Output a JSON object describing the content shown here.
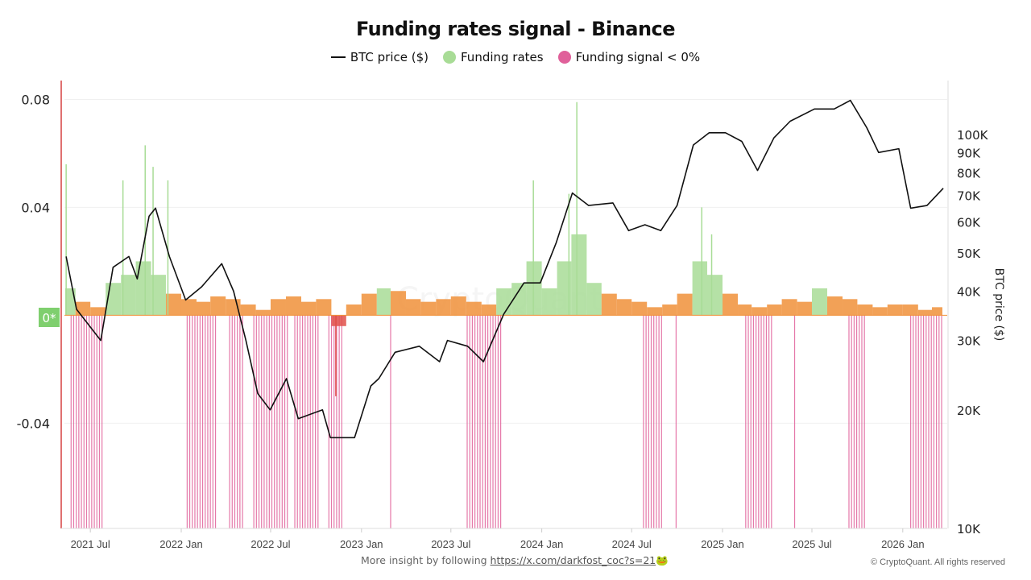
{
  "chart_data": {
    "type": "bar+line",
    "title": "Funding rates signal - Binance",
    "legend": {
      "placement": "top",
      "entries": [
        {
          "label": "BTC price ($)",
          "color": "#111111",
          "kind": "line"
        },
        {
          "label": "Funding rates",
          "color": "#a8dc96",
          "kind": "dot"
        },
        {
          "label": "Funding signal < 0%",
          "color": "#e0609a",
          "kind": "dot"
        }
      ]
    },
    "xlim": [
      "2021-05-03",
      "2026-04-01"
    ],
    "x_ticks": [
      {
        "date": "2021-07-01",
        "label": "2021 Jul"
      },
      {
        "date": "2022-01-01",
        "label": "2022 Jan"
      },
      {
        "date": "2022-07-01",
        "label": "2022 Jul"
      },
      {
        "date": "2023-01-01",
        "label": "2023 Jan"
      },
      {
        "date": "2023-07-01",
        "label": "2023 Jul"
      },
      {
        "date": "2024-01-01",
        "label": "2024 Jan"
      },
      {
        "date": "2024-07-01",
        "label": "2024 Jul"
      },
      {
        "date": "2025-01-01",
        "label": "2025 Jan"
      },
      {
        "date": "2025-07-01",
        "label": "2025 Jul"
      },
      {
        "date": "2026-01-01",
        "label": "2026 Jan"
      }
    ],
    "left_axis": {
      "ylim": [
        -0.079,
        0.087
      ],
      "ticks": [
        {
          "v": 0.08,
          "label": "0.08"
        },
        {
          "v": 0.04,
          "label": "0.04"
        },
        {
          "v": -0.04,
          "label": "-0.04"
        }
      ],
      "zero_label": "0*",
      "grid": true
    },
    "right_axis": {
      "label": "BTC price ($)",
      "scale": "log",
      "ylim": [
        10000,
        137000
      ],
      "ticks": [
        {
          "v": 100000,
          "label": "100K"
        },
        {
          "v": 90000,
          "label": "90K"
        },
        {
          "v": 80000,
          "label": "80K"
        },
        {
          "v": 70000,
          "label": "70K"
        },
        {
          "v": 60000,
          "label": "60K"
        },
        {
          "v": 50000,
          "label": "50K"
        },
        {
          "v": 40000,
          "label": "40K"
        },
        {
          "v": 30000,
          "label": "30K"
        },
        {
          "v": 20000,
          "label": "20K"
        },
        {
          "v": 10000,
          "label": "10K"
        }
      ]
    },
    "colors": {
      "funding_high": "#a8dc96",
      "funding_low": "#f0913a",
      "funding_negative": "#e0504a",
      "signal": "#e0609a",
      "price": "#111111",
      "zero_badge": "#7fcf6e"
    },
    "funding_threshold": 0.01,
    "funding_monthly": [
      [
        "2021-05",
        0.01
      ],
      [
        "2021-06",
        0.005
      ],
      [
        "2021-07",
        0.003
      ],
      [
        "2021-08",
        0.012
      ],
      [
        "2021-09",
        0.015
      ],
      [
        "2021-10",
        0.02
      ],
      [
        "2021-11",
        0.015
      ],
      [
        "2021-12",
        0.008
      ],
      [
        "2022-01",
        0.006
      ],
      [
        "2022-02",
        0.005
      ],
      [
        "2022-03",
        0.007
      ],
      [
        "2022-04",
        0.006
      ],
      [
        "2022-05",
        0.004
      ],
      [
        "2022-06",
        0.002
      ],
      [
        "2022-07",
        0.006
      ],
      [
        "2022-08",
        0.007
      ],
      [
        "2022-09",
        0.005
      ],
      [
        "2022-10",
        0.006
      ],
      [
        "2022-11",
        -0.004
      ],
      [
        "2022-12",
        0.004
      ],
      [
        "2023-01",
        0.008
      ],
      [
        "2023-02",
        0.01
      ],
      [
        "2023-03",
        0.009
      ],
      [
        "2023-04",
        0.006
      ],
      [
        "2023-05",
        0.005
      ],
      [
        "2023-06",
        0.006
      ],
      [
        "2023-07",
        0.007
      ],
      [
        "2023-08",
        0.005
      ],
      [
        "2023-09",
        0.004
      ],
      [
        "2023-10",
        0.01
      ],
      [
        "2023-11",
        0.012
      ],
      [
        "2023-12",
        0.02
      ],
      [
        "2024-01",
        0.01
      ],
      [
        "2024-02",
        0.02
      ],
      [
        "2024-03",
        0.03
      ],
      [
        "2024-04",
        0.012
      ],
      [
        "2024-05",
        0.008
      ],
      [
        "2024-06",
        0.006
      ],
      [
        "2024-07",
        0.005
      ],
      [
        "2024-08",
        0.003
      ],
      [
        "2024-09",
        0.004
      ],
      [
        "2024-10",
        0.008
      ],
      [
        "2024-11",
        0.02
      ],
      [
        "2024-12",
        0.015
      ],
      [
        "2025-01",
        0.008
      ],
      [
        "2025-02",
        0.004
      ],
      [
        "2025-03",
        0.003
      ],
      [
        "2025-04",
        0.004
      ],
      [
        "2025-05",
        0.006
      ],
      [
        "2025-06",
        0.005
      ],
      [
        "2025-07",
        0.01
      ],
      [
        "2025-08",
        0.007
      ],
      [
        "2025-09",
        0.006
      ],
      [
        "2025-10",
        0.004
      ],
      [
        "2025-11",
        0.003
      ],
      [
        "2025-12",
        0.004
      ],
      [
        "2026-01",
        0.004
      ],
      [
        "2026-02",
        0.002
      ],
      [
        "2026-03",
        0.003
      ]
    ],
    "funding_peaks": [
      [
        "2021-05-13",
        0.056
      ],
      [
        "2021-09-05",
        0.05
      ],
      [
        "2021-10-20",
        0.063
      ],
      [
        "2021-11-05",
        0.055
      ],
      [
        "2021-12-05",
        0.05
      ],
      [
        "2022-11-10",
        -0.03
      ],
      [
        "2023-12-15",
        0.05
      ],
      [
        "2024-02-25",
        0.045
      ],
      [
        "2024-03-12",
        0.079
      ],
      [
        "2024-11-20",
        0.04
      ],
      [
        "2024-12-10",
        0.03
      ]
    ],
    "signal_periods": [
      [
        "2021-05-23",
        "2021-07-27"
      ],
      [
        "2022-01-13",
        "2022-03-13"
      ],
      [
        "2022-04-09",
        "2022-05-10"
      ],
      [
        "2022-05-28",
        "2022-08-05"
      ],
      [
        "2022-08-19",
        "2022-10-07"
      ],
      [
        "2022-10-27",
        "2022-11-22"
      ],
      [
        "2023-03-01",
        "2023-03-04"
      ],
      [
        "2023-08-03",
        "2023-10-10"
      ],
      [
        "2024-07-25",
        "2024-08-31"
      ],
      [
        "2024-09-29",
        "2024-10-01"
      ],
      [
        "2025-02-17",
        "2025-04-15"
      ],
      [
        "2025-05-27",
        "2025-05-29"
      ],
      [
        "2025-09-14",
        "2025-10-20"
      ],
      [
        "2026-01-17",
        "2026-03-24"
      ]
    ],
    "btc_price": [
      [
        "2021-05-13",
        49000
      ],
      [
        "2021-06-03",
        36000
      ],
      [
        "2021-07-22",
        30000
      ],
      [
        "2021-08-16",
        46000
      ],
      [
        "2021-09-17",
        49000
      ],
      [
        "2021-10-04",
        43000
      ],
      [
        "2021-10-28",
        62000
      ],
      [
        "2021-11-10",
        65000
      ],
      [
        "2021-12-08",
        49000
      ],
      [
        "2022-01-10",
        38000
      ],
      [
        "2022-02-11",
        41000
      ],
      [
        "2022-03-24",
        47000
      ],
      [
        "2022-04-17",
        40000
      ],
      [
        "2022-05-12",
        30000
      ],
      [
        "2022-06-05",
        22000
      ],
      [
        "2022-06-30",
        20000
      ],
      [
        "2022-08-02",
        24000
      ],
      [
        "2022-08-26",
        19000
      ],
      [
        "2022-10-14",
        20000
      ],
      [
        "2022-10-30",
        17000
      ],
      [
        "2022-12-18",
        17000
      ],
      [
        "2023-01-20",
        23000
      ],
      [
        "2023-02-05",
        24000
      ],
      [
        "2023-03-10",
        28000
      ],
      [
        "2023-04-28",
        29000
      ],
      [
        "2023-06-08",
        26500
      ],
      [
        "2023-06-24",
        30000
      ],
      [
        "2023-08-04",
        29000
      ],
      [
        "2023-09-05",
        26500
      ],
      [
        "2023-10-16",
        35000
      ],
      [
        "2023-11-26",
        42000
      ],
      [
        "2023-12-29",
        42000
      ],
      [
        "2024-01-30",
        53000
      ],
      [
        "2024-03-03",
        71000
      ],
      [
        "2024-04-05",
        66000
      ],
      [
        "2024-05-24",
        67000
      ],
      [
        "2024-06-25",
        57000
      ],
      [
        "2024-07-28",
        59000
      ],
      [
        "2024-08-29",
        57000
      ],
      [
        "2024-10-01",
        66000
      ],
      [
        "2024-11-03",
        94000
      ],
      [
        "2024-12-05",
        101000
      ],
      [
        "2025-01-07",
        101000
      ],
      [
        "2025-02-09",
        96000
      ],
      [
        "2025-03-13",
        81000
      ],
      [
        "2025-04-15",
        98000
      ],
      [
        "2025-05-18",
        108000
      ],
      [
        "2025-07-06",
        116000
      ],
      [
        "2025-08-15",
        116000
      ],
      [
        "2025-09-17",
        122000
      ],
      [
        "2025-10-20",
        104000
      ],
      [
        "2025-11-13",
        90000
      ],
      [
        "2025-12-24",
        92000
      ],
      [
        "2026-01-17",
        65000
      ],
      [
        "2026-02-19",
        66000
      ],
      [
        "2026-03-24",
        73000
      ]
    ]
  },
  "footer": {
    "text": "More insight by following ",
    "link": "https://x.com/darkfost_coc?s=21",
    "emoji": "🐸",
    "copyright": "© CryptoQuant. All rights reserved"
  },
  "watermark": "CryptoQuant"
}
